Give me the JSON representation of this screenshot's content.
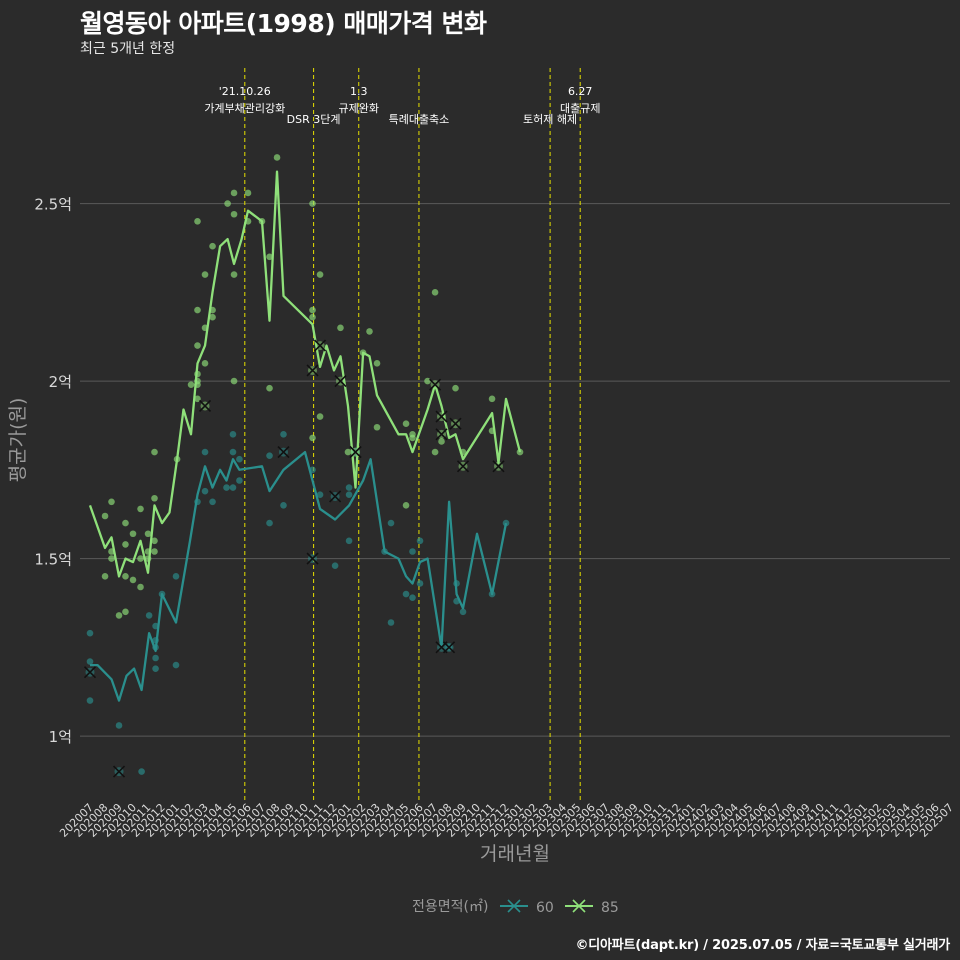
{
  "chart_data": {
    "type": "line",
    "title": "월영동아 아파트(1998) 매매가격 변화",
    "subtitle": "최근 5개년 한정",
    "caption": "©디아파트(dapt.kr) / 2025.07.05 / 자료=국토교통부 실거래가",
    "xlabel": "거래년월",
    "ylabel": "평균가(원)",
    "ylim": [
      0.82,
      2.82
    ],
    "yticks": [
      {
        "v": 1.0,
        "label": "1억"
      },
      {
        "v": 1.5,
        "label": "1.5억"
      },
      {
        "v": 2.0,
        "label": "2억"
      },
      {
        "v": 2.5,
        "label": "2.5억"
      }
    ],
    "x_categories": [
      "202007",
      "202008",
      "202009",
      "202010",
      "202011",
      "202012",
      "202101",
      "202102",
      "202103",
      "202104",
      "202105",
      "202106",
      "202107",
      "202108",
      "202109",
      "202110",
      "202111",
      "202112",
      "202201",
      "202202",
      "202203",
      "202204",
      "202205",
      "202206",
      "202207",
      "202208",
      "202209",
      "202210",
      "202211",
      "202212",
      "202301",
      "202302",
      "202303",
      "202304",
      "202305",
      "202306",
      "202307",
      "202308",
      "202309",
      "202310",
      "202311",
      "202312",
      "202401",
      "202402",
      "202403",
      "202404",
      "202405",
      "202406",
      "202407",
      "202408",
      "202409",
      "202410",
      "202411",
      "202412",
      "202501",
      "202502",
      "202503",
      "202504",
      "202505",
      "202506",
      "202507"
    ],
    "legend": {
      "title": "전용면적(㎡)",
      "position": "bottom"
    },
    "annotations": [
      {
        "x": 27.2,
        "lines": [
          "'21.10.26",
          "가계부채관리강화"
        ]
      },
      {
        "x": 30.4,
        "lines": [
          "DSR 3단계"
        ]
      },
      {
        "x": 32.5,
        "lines": [
          "1.3",
          "규제완화"
        ]
      },
      {
        "x": 35.3,
        "lines": [
          "특례대출축소"
        ]
      },
      {
        "x": 41.4,
        "lines": [
          "토허제 해제"
        ]
      },
      {
        "x": 42.8,
        "lines": [
          "6.27",
          "대출규제"
        ]
      }
    ],
    "series": [
      {
        "name": "60",
        "color": "#2a8f8d",
        "points": [
          [
            20.0,
            1.2
          ],
          [
            20.35,
            1.2
          ],
          [
            21.0,
            1.16
          ],
          [
            21.35,
            1.1
          ],
          [
            21.7,
            1.17
          ],
          [
            22.05,
            1.19
          ],
          [
            22.4,
            1.13
          ],
          [
            22.75,
            1.29
          ],
          [
            23.05,
            1.24
          ],
          [
            23.35,
            1.4
          ],
          [
            24.0,
            1.32
          ],
          [
            24.65,
            1.55
          ],
          [
            25.0,
            1.68
          ],
          [
            25.35,
            1.76
          ],
          [
            25.7,
            1.7
          ],
          [
            26.05,
            1.75
          ],
          [
            26.35,
            1.72
          ],
          [
            26.65,
            1.78
          ],
          [
            26.95,
            1.75
          ],
          [
            28.0,
            1.76
          ],
          [
            28.35,
            1.69
          ],
          [
            29.0,
            1.75
          ],
          [
            30.0,
            1.8
          ],
          [
            30.7,
            1.64
          ],
          [
            31.4,
            1.61
          ],
          [
            32.05,
            1.65
          ],
          [
            32.7,
            1.72
          ],
          [
            33.05,
            1.78
          ],
          [
            33.7,
            1.52
          ],
          [
            34.35,
            1.5
          ],
          [
            34.7,
            1.45
          ],
          [
            35.0,
            1.43
          ],
          [
            35.35,
            1.49
          ],
          [
            35.7,
            1.5
          ],
          [
            36.35,
            1.25
          ],
          [
            36.7,
            1.66
          ],
          [
            37.05,
            1.4
          ],
          [
            37.35,
            1.36
          ],
          [
            38.0,
            1.57
          ],
          [
            38.7,
            1.4
          ],
          [
            39.35,
            1.6
          ]
        ]
      },
      {
        "name": "85",
        "color": "#8fe07a",
        "points": [
          [
            20.0,
            1.65
          ],
          [
            20.7,
            1.53
          ],
          [
            21.0,
            1.56
          ],
          [
            21.35,
            1.45
          ],
          [
            21.65,
            1.5
          ],
          [
            22.0,
            1.49
          ],
          [
            22.35,
            1.55
          ],
          [
            22.7,
            1.46
          ],
          [
            23.0,
            1.65
          ],
          [
            23.35,
            1.6
          ],
          [
            23.7,
            1.63
          ],
          [
            24.05,
            1.78
          ],
          [
            24.35,
            1.92
          ],
          [
            24.7,
            1.85
          ],
          [
            25.0,
            2.05
          ],
          [
            25.35,
            2.1
          ],
          [
            25.7,
            2.25
          ],
          [
            26.05,
            2.38
          ],
          [
            26.4,
            2.4
          ],
          [
            26.7,
            2.33
          ],
          [
            27.05,
            2.4
          ],
          [
            27.35,
            2.48
          ],
          [
            28.0,
            2.45
          ],
          [
            28.35,
            2.17
          ],
          [
            28.7,
            2.59
          ],
          [
            29.0,
            2.24
          ],
          [
            30.35,
            2.16
          ],
          [
            30.7,
            2.04
          ],
          [
            31.0,
            2.1
          ],
          [
            31.35,
            2.03
          ],
          [
            31.65,
            2.07
          ],
          [
            32.0,
            1.93
          ],
          [
            32.35,
            1.7
          ],
          [
            32.7,
            2.08
          ],
          [
            33.0,
            2.07
          ],
          [
            33.35,
            1.96
          ],
          [
            34.35,
            1.85
          ],
          [
            34.7,
            1.85
          ],
          [
            35.0,
            1.8
          ],
          [
            35.7,
            1.92
          ],
          [
            36.05,
            1.99
          ],
          [
            36.35,
            1.93
          ],
          [
            36.7,
            1.84
          ],
          [
            37.0,
            1.85
          ],
          [
            37.35,
            1.78
          ],
          [
            38.7,
            1.91
          ],
          [
            39.0,
            1.77
          ],
          [
            39.35,
            1.95
          ],
          [
            40.0,
            1.8
          ]
        ]
      }
    ],
    "raw_points": {
      "60": [
        [
          20.0,
          1.29
        ],
        [
          20.0,
          1.1
        ],
        [
          20.0,
          1.21
        ],
        [
          21.35,
          1.03
        ],
        [
          22.4,
          0.9
        ],
        [
          22.75,
          1.34
        ],
        [
          23.05,
          1.31
        ],
        [
          23.05,
          1.27
        ],
        [
          23.05,
          1.25
        ],
        [
          23.05,
          1.22
        ],
        [
          23.05,
          1.19
        ],
        [
          23.35,
          1.4
        ],
        [
          24.0,
          1.45
        ],
        [
          24.0,
          1.2
        ],
        [
          25.0,
          1.66
        ],
        [
          25.35,
          1.8
        ],
        [
          25.35,
          1.69
        ],
        [
          25.7,
          1.66
        ],
        [
          26.35,
          1.7
        ],
        [
          26.65,
          1.85
        ],
        [
          26.65,
          1.8
        ],
        [
          26.65,
          1.7
        ],
        [
          26.95,
          1.72
        ],
        [
          26.95,
          1.78
        ],
        [
          28.35,
          1.79
        ],
        [
          28.35,
          1.6
        ],
        [
          29.0,
          1.65
        ],
        [
          29.0,
          1.85
        ],
        [
          30.35,
          1.75
        ],
        [
          30.7,
          1.68
        ],
        [
          31.4,
          1.48
        ],
        [
          32.05,
          1.55
        ],
        [
          32.05,
          1.68
        ],
        [
          32.05,
          1.7
        ],
        [
          33.7,
          1.52
        ],
        [
          34.0,
          1.6
        ],
        [
          34.0,
          1.32
        ],
        [
          34.7,
          1.4
        ],
        [
          35.0,
          1.39
        ],
        [
          35.0,
          1.52
        ],
        [
          35.35,
          1.43
        ],
        [
          35.35,
          1.55
        ],
        [
          36.7,
          1.25
        ],
        [
          37.05,
          1.43
        ],
        [
          37.05,
          1.38
        ],
        [
          37.35,
          1.35
        ],
        [
          38.7,
          1.4
        ],
        [
          39.35,
          1.6
        ]
      ],
      "85": [
        [
          20.7,
          1.62
        ],
        [
          20.7,
          1.45
        ],
        [
          21.0,
          1.66
        ],
        [
          21.0,
          1.52
        ],
        [
          21.0,
          1.5
        ],
        [
          21.35,
          1.34
        ],
        [
          21.65,
          1.6
        ],
        [
          21.65,
          1.54
        ],
        [
          21.65,
          1.45
        ],
        [
          21.65,
          1.35
        ],
        [
          22.0,
          1.57
        ],
        [
          22.0,
          1.44
        ],
        [
          22.35,
          1.64
        ],
        [
          22.35,
          1.5
        ],
        [
          22.35,
          1.42
        ],
        [
          22.7,
          1.57
        ],
        [
          22.7,
          1.52
        ],
        [
          22.7,
          1.5
        ],
        [
          23.0,
          1.8
        ],
        [
          23.0,
          1.67
        ],
        [
          23.0,
          1.55
        ],
        [
          23.0,
          1.52
        ],
        [
          24.05,
          1.78
        ],
        [
          24.7,
          1.99
        ],
        [
          25.0,
          2.2
        ],
        [
          25.0,
          2.1
        ],
        [
          25.0,
          2.02
        ],
        [
          25.0,
          2.0
        ],
        [
          25.0,
          1.99
        ],
        [
          25.0,
          1.95
        ],
        [
          25.0,
          2.45
        ],
        [
          25.35,
          2.3
        ],
        [
          25.35,
          2.15
        ],
        [
          25.35,
          2.05
        ],
        [
          25.7,
          2.2
        ],
        [
          25.7,
          2.18
        ],
        [
          25.7,
          2.38
        ],
        [
          26.4,
          2.5
        ],
        [
          26.7,
          2.53
        ],
        [
          26.7,
          2.47
        ],
        [
          26.7,
          2.3
        ],
        [
          26.7,
          2.0
        ],
        [
          27.35,
          2.53
        ],
        [
          27.35,
          2.45
        ],
        [
          28.0,
          2.45
        ],
        [
          28.35,
          2.35
        ],
        [
          28.35,
          1.98
        ],
        [
          28.7,
          2.63
        ],
        [
          30.35,
          2.5
        ],
        [
          30.35,
          2.2
        ],
        [
          30.35,
          2.18
        ],
        [
          30.35,
          1.84
        ],
        [
          30.7,
          2.3
        ],
        [
          30.7,
          1.9
        ],
        [
          31.65,
          2.15
        ],
        [
          32.0,
          1.8
        ],
        [
          32.7,
          2.08
        ],
        [
          33.0,
          2.14
        ],
        [
          33.35,
          2.05
        ],
        [
          33.35,
          1.87
        ],
        [
          34.7,
          1.88
        ],
        [
          34.7,
          1.65
        ],
        [
          35.0,
          1.85
        ],
        [
          35.0,
          1.84
        ],
        [
          35.7,
          2.0
        ],
        [
          36.05,
          2.25
        ],
        [
          36.05,
          1.8
        ],
        [
          36.35,
          1.83
        ],
        [
          37.0,
          1.98
        ],
        [
          37.35,
          1.8
        ],
        [
          38.7,
          1.95
        ],
        [
          38.7,
          1.86
        ],
        [
          40.0,
          1.8
        ]
      ]
    },
    "crosses": {
      "60": [
        [
          20.0,
          1.18
        ],
        [
          21.35,
          0.9
        ],
        [
          29.0,
          1.8
        ],
        [
          32.35,
          1.8
        ],
        [
          36.35,
          1.25
        ],
        [
          36.7,
          1.25
        ],
        [
          31.4,
          1.675
        ],
        [
          30.35,
          1.5
        ]
      ],
      "85": [
        [
          25.35,
          1.93
        ],
        [
          30.35,
          2.03
        ],
        [
          30.7,
          2.1
        ],
        [
          31.65,
          2.0
        ],
        [
          32.35,
          1.8
        ],
        [
          36.05,
          1.99
        ],
        [
          36.35,
          1.9
        ],
        [
          36.35,
          1.85
        ],
        [
          37.0,
          1.88
        ],
        [
          37.35,
          1.76
        ],
        [
          39.0,
          1.76
        ]
      ]
    }
  }
}
